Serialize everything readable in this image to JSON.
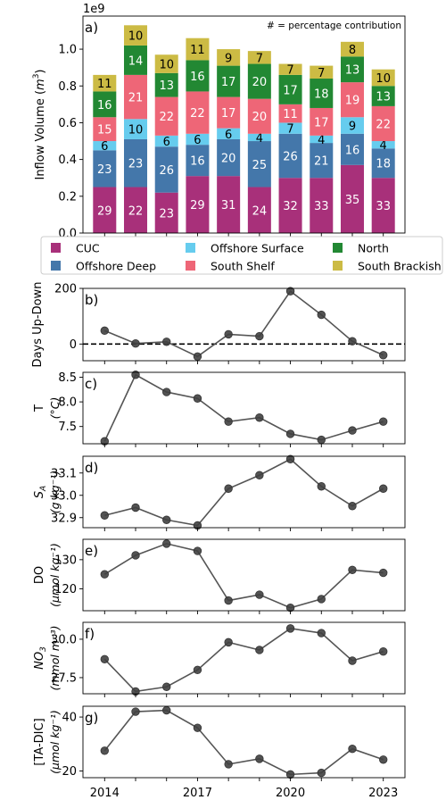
{
  "chart_data": [
    {
      "type": "bar",
      "stacked": true,
      "panel_label": "a)",
      "ylabel": "Inflow Volume ($m^3$)",
      "offset_label": "1e9",
      "annotation": "# = percentage contribution",
      "x": [
        2014,
        2015,
        2016,
        2017,
        2018,
        2019,
        2020,
        2021,
        2022,
        2023
      ],
      "ylim": [
        0,
        1.18
      ],
      "yticks": [
        "0.0",
        "0.2",
        "0.4",
        "0.6",
        "0.8",
        "1.0"
      ],
      "legend_position": "below",
      "series": [
        {
          "name": "CUC",
          "color": "#a8307a",
          "label_color": "#ffffff",
          "values": [
            0.25,
            0.25,
            0.22,
            0.31,
            0.31,
            0.25,
            0.3,
            0.3,
            0.37,
            0.3
          ],
          "labels": [
            "29",
            "22",
            "23",
            "29",
            "31",
            "24",
            "32",
            "33",
            "35",
            "33"
          ]
        },
        {
          "name": "Offshore Deep",
          "color": "#4477aa",
          "label_color": "#ffffff",
          "values": [
            0.2,
            0.26,
            0.25,
            0.17,
            0.2,
            0.25,
            0.24,
            0.19,
            0.17,
            0.16
          ],
          "labels": [
            "23",
            "23",
            "26",
            "16",
            "20",
            "25",
            "26",
            "21",
            "16",
            "18"
          ]
        },
        {
          "name": "Offshore Surface",
          "color": "#66ccee",
          "label_color": "#000000",
          "values": [
            0.05,
            0.11,
            0.06,
            0.06,
            0.06,
            0.04,
            0.06,
            0.04,
            0.09,
            0.04
          ],
          "labels": [
            "6",
            "10",
            "6",
            "6",
            "6",
            "4",
            "7",
            "4",
            "9",
            "4"
          ]
        },
        {
          "name": "South Shelf",
          "color": "#ee6677",
          "label_color": "#ffffff",
          "values": [
            0.13,
            0.24,
            0.21,
            0.23,
            0.17,
            0.19,
            0.1,
            0.15,
            0.19,
            0.19
          ],
          "labels": [
            "15",
            "21",
            "22",
            "22",
            "17",
            "20",
            "11",
            "17",
            "19",
            "22"
          ]
        },
        {
          "name": "North",
          "color": "#228833",
          "label_color": "#ffffff",
          "values": [
            0.14,
            0.16,
            0.13,
            0.17,
            0.17,
            0.19,
            0.16,
            0.16,
            0.14,
            0.11
          ],
          "labels": [
            "16",
            "14",
            "13",
            "16",
            "17",
            "20",
            "17",
            "18",
            "13",
            "13"
          ]
        },
        {
          "name": "South Brackish",
          "color": "#ccbb44",
          "label_color": "#000000",
          "values": [
            0.09,
            0.11,
            0.1,
            0.12,
            0.09,
            0.07,
            0.06,
            0.07,
            0.08,
            0.09
          ],
          "labels": [
            "11",
            "10",
            "10",
            "11",
            "9",
            "7",
            "7",
            "7",
            "8",
            "10"
          ]
        }
      ]
    },
    {
      "type": "line",
      "panel_label": "b)",
      "ylabel": "Days Up-Down",
      "x": [
        2014,
        2015,
        2016,
        2017,
        2018,
        2019,
        2020,
        2021,
        2022,
        2023
      ],
      "y": [
        48,
        2,
        8,
        -45,
        35,
        28,
        190,
        105,
        10,
        -40
      ],
      "ylim": [
        -60,
        200
      ],
      "yticks": [
        0,
        200
      ],
      "zero_line": true
    },
    {
      "type": "line",
      "panel_label": "c)",
      "ylabel": "T",
      "yunit": "(°C)",
      "x": [
        2014,
        2015,
        2016,
        2017,
        2018,
        2019,
        2020,
        2021,
        2022,
        2023
      ],
      "y": [
        7.2,
        8.55,
        8.2,
        8.07,
        7.6,
        7.68,
        7.35,
        7.23,
        7.42,
        7.6
      ],
      "ylim": [
        7.15,
        8.6
      ],
      "yticks": [
        "7.5",
        "8.0",
        "8.5"
      ]
    },
    {
      "type": "line",
      "panel_label": "d)",
      "ylabel": "SA",
      "yunit": "(g kg⁻¹)",
      "x": [
        2014,
        2015,
        2016,
        2017,
        2018,
        2019,
        2020,
        2021,
        2022,
        2023
      ],
      "y": [
        32.91,
        32.945,
        32.89,
        32.865,
        33.03,
        33.09,
        33.162,
        33.04,
        32.952,
        33.03
      ],
      "ylim": [
        32.855,
        33.175
      ],
      "yticks": [
        "32.9",
        "33.0",
        "33.1"
      ]
    },
    {
      "type": "line",
      "panel_label": "e)",
      "ylabel": "DO",
      "yunit": "(μmol kg⁻¹)",
      "x": [
        2014,
        2015,
        2016,
        2017,
        2018,
        2019,
        2020,
        2021,
        2022,
        2023
      ],
      "y": [
        125,
        131.5,
        135.5,
        133,
        116,
        118,
        113.5,
        116.5,
        126.5,
        125.5
      ],
      "ylim": [
        112.5,
        137
      ],
      "yticks": [
        "120",
        "130"
      ]
    },
    {
      "type": "line",
      "panel_label": "f)",
      "ylabel": "NO3",
      "yunit": "(mmol m⁻³)",
      "x": [
        2014,
        2015,
        2016,
        2017,
        2018,
        2019,
        2020,
        2021,
        2022,
        2023
      ],
      "y": [
        28.7,
        26.6,
        26.9,
        28.0,
        29.8,
        29.3,
        30.7,
        30.4,
        28.6,
        29.2
      ],
      "ylim": [
        26.45,
        31.1
      ],
      "yticks": [
        "27.5",
        "30.0"
      ]
    },
    {
      "type": "line",
      "panel_label": "g)",
      "ylabel": "[TA-DIC]",
      "yunit": "(μmol kg⁻¹)",
      "x": [
        2014,
        2015,
        2016,
        2017,
        2018,
        2019,
        2020,
        2021,
        2022,
        2023
      ],
      "y": [
        27.5,
        42,
        42.5,
        36,
        22.5,
        24.5,
        18.7,
        19.3,
        28.2,
        24.2
      ],
      "ylim": [
        17.5,
        44
      ],
      "yticks": [
        "20",
        "40"
      ],
      "xticks": [
        "2014",
        "2017",
        "2020",
        "2023"
      ]
    }
  ]
}
